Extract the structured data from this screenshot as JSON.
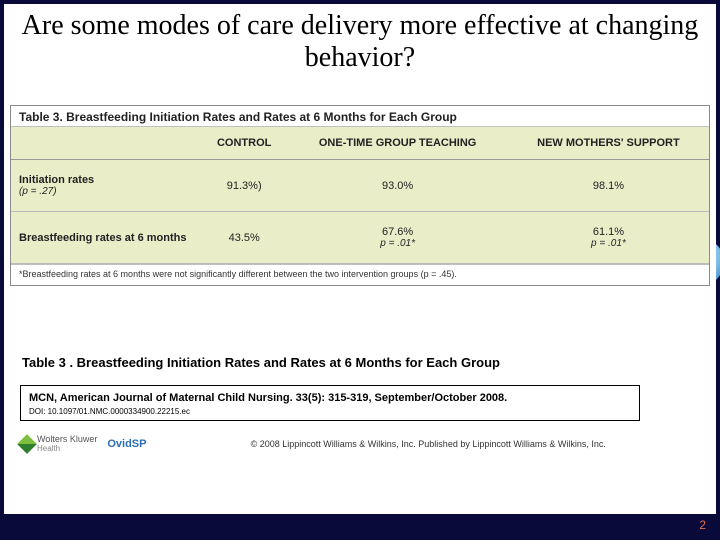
{
  "title": "Are some modes of care delivery more effective at changing behavior?",
  "table": {
    "caption": "Table 3. Breastfeeding Initiation Rates and Rates at 6 Months for Each Group",
    "columns": {
      "c1": "CONTROL",
      "c2": "ONE-TIME GROUP TEACHING",
      "c3": "NEW MOTHERS' SUPPORT"
    },
    "row1": {
      "label": "Initiation rates",
      "labelSub": "(p = .27)",
      "v1": "91.3%)",
      "v2": "93.0%",
      "v3": "98.1%"
    },
    "row2": {
      "label": "Breastfeeding rates at 6 months",
      "v1": "43.5%",
      "v2": "67.6%",
      "v2p": "p = .01*",
      "v3": "61.1%",
      "v3p": "p = .01*"
    },
    "footnote": "*Breastfeeding rates at 6 months were not significantly different between the two intervention groups (p = .45)."
  },
  "caption2": "Table 3 . Breastfeeding Initiation Rates and Rates at 6 Months for Each Group",
  "citation": {
    "main": "MCN, American Journal of Maternal Child Nursing. 33(5): 315-319, September/October 2008.",
    "doi": "DOI: 10.1097/01.NMC.0000334900.22215.ec"
  },
  "footer": {
    "wk": "Wolters Kluwer",
    "wkSub": "Health",
    "ovid": "OvidSP",
    "copyright": "© 2008 Lippincott Williams & Wilkins, Inc.  Published by Lippincott Williams & Wilkins, Inc."
  },
  "pagenum": "2"
}
